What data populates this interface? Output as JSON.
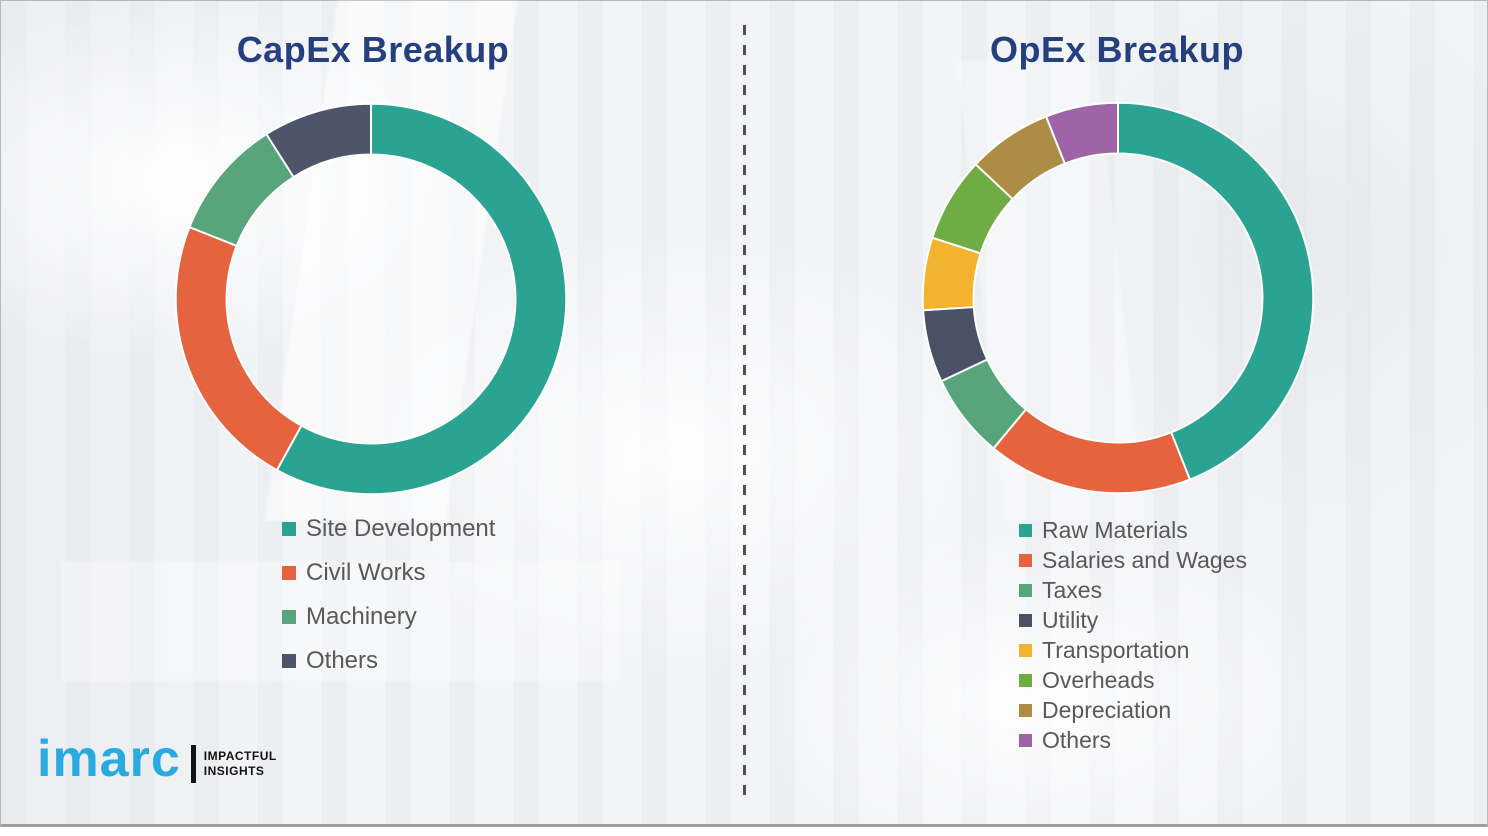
{
  "logo": {
    "brand": "imarc",
    "tagline_line1": "IMPACTFUL",
    "tagline_line2": "INSIGHTS",
    "brand_color": "#29abe2"
  },
  "style": {
    "title_color": "#24407e",
    "legend_text_color": "#595959",
    "divider_color": "#4f4f4f",
    "background_color": "#f2f3f5"
  },
  "chart_data": [
    {
      "type": "pie",
      "style": "donut",
      "title": "CapEx Breakup",
      "categories": [
        "Site Development",
        "Civil Works",
        "Machinery",
        "Others"
      ],
      "values": [
        58,
        23,
        10,
        9
      ],
      "unit": "percent",
      "colors": [
        "#2aa392",
        "#e5643f",
        "#58a47b",
        "#4e5469"
      ],
      "start_angle_deg": 0,
      "direction": "clockwise",
      "inner_radius_ratio": 0.74,
      "legend_position": "below-left",
      "data_labels": false
    },
    {
      "type": "pie",
      "style": "donut",
      "title": "OpEx Breakup",
      "categories": [
        "Raw Materials",
        "Salaries and Wages",
        "Taxes",
        "Utility",
        "Transportation",
        "Overheads",
        "Depreciation",
        "Others"
      ],
      "values": [
        44,
        17,
        7,
        6,
        6,
        7,
        7,
        6
      ],
      "unit": "percent",
      "colors": [
        "#2aa392",
        "#e5643f",
        "#58a47b",
        "#4a5166",
        "#f3b32e",
        "#6fac44",
        "#ad8c45",
        "#9e64a6"
      ],
      "start_angle_deg": 0,
      "direction": "clockwise",
      "inner_radius_ratio": 0.74,
      "legend_position": "below-left",
      "data_labels": false
    }
  ]
}
